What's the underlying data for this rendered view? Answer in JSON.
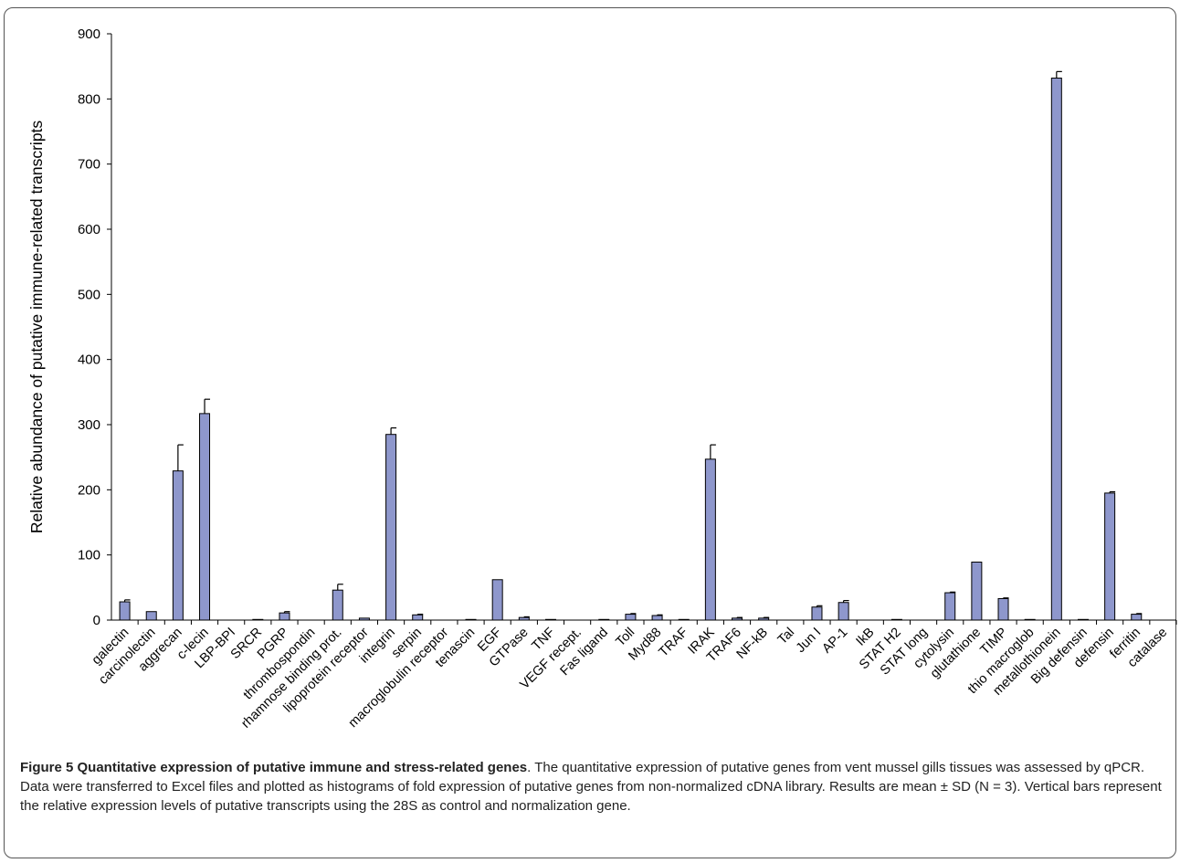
{
  "caption": {
    "title": "Figure 5 Quantitative expression of putative immune and stress-related genes",
    "text": ". The quantitative expression of putative genes from vent mussel gills tissues was assessed by qPCR. Data were transferred to Excel files and plotted as histograms of fold expression of putative genes from non-normalized cDNA library. Results are mean ± SD (N = 3). Vertical bars represent the relative expression levels of putative transcripts using the 28S as control and normalization gene."
  },
  "colors": {
    "bar_fill": "#8e97cc",
    "bar_stroke": "#000000",
    "axis": "#000000"
  },
  "chart_data": {
    "type": "bar",
    "title": "",
    "xlabel": "",
    "ylabel": "Relative abundance of putative immune-related transcripts",
    "ylim": [
      0,
      900
    ],
    "yticks": [
      0,
      100,
      200,
      300,
      400,
      500,
      600,
      700,
      800,
      900
    ],
    "grid": false,
    "legend": "none",
    "categories": [
      "galectin",
      "carcinolectin",
      "aggrecan",
      "c-lecin",
      "LBP-BPI",
      "SRCR",
      "PGRP",
      "thrombospondin",
      "rhamnose binding prot.",
      "lipoprotein receptor",
      "integrin",
      "serpin",
      "macroglobulin receptor",
      "tenascin",
      "EGF",
      "GTPase",
      "TNF",
      "VEGF recept.",
      "Fas ligand",
      "Toll",
      "Myd88",
      "TRAF",
      "IRAK",
      "TRAF6",
      "NF-kB",
      "Tal",
      "Jun I",
      "AP-1",
      "IkB",
      "STAT H2",
      "STAT long",
      "cytolysin",
      "glutathione",
      "TIMP",
      "thio macroglob",
      "metallothionein",
      "Big defensin",
      "defensin",
      "ferritin",
      "catalase"
    ],
    "values": [
      28,
      13,
      229,
      317,
      0,
      1,
      11,
      0,
      46,
      3,
      285,
      8,
      0,
      1,
      62,
      4,
      1,
      0,
      1,
      9,
      7,
      1,
      247,
      3,
      3,
      0,
      20,
      27,
      0,
      1,
      0,
      42,
      89,
      33,
      1,
      832,
      1,
      195,
      9,
      0
    ],
    "errors": [
      3,
      0,
      40,
      22,
      0,
      0,
      2,
      0,
      9,
      0,
      10,
      1,
      0,
      0,
      0,
      1,
      0,
      0,
      0,
      1,
      1,
      0,
      22,
      1,
      1,
      0,
      2,
      3,
      0,
      0,
      0,
      1,
      0,
      1,
      0,
      10,
      0,
      2,
      1,
      0
    ]
  }
}
